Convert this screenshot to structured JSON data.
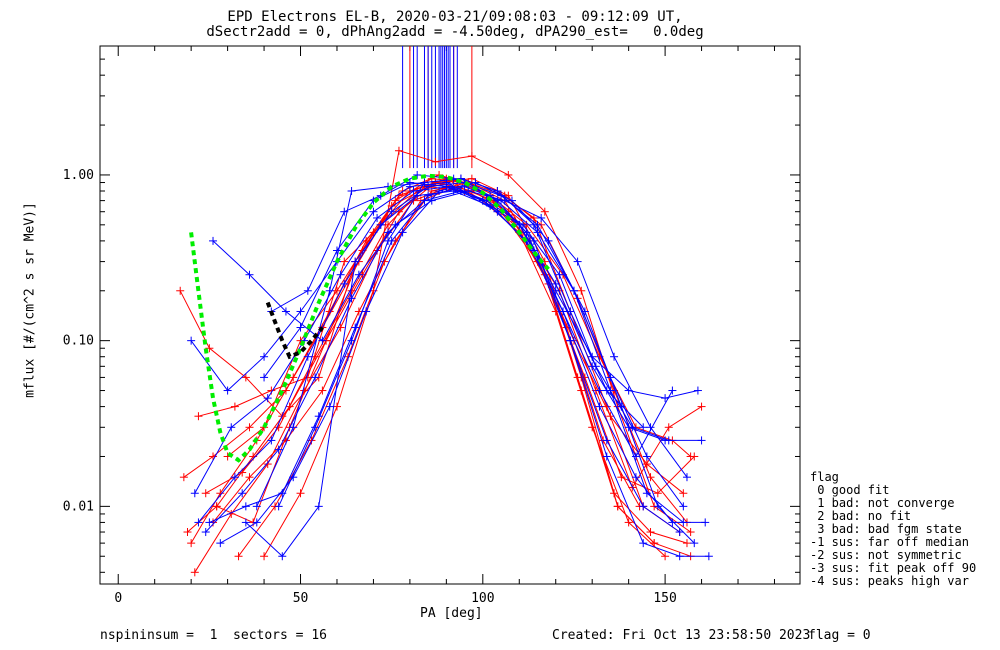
{
  "title_line1": "EPD Electrons EL-B, 2020-03-21/09:08:03 - 09:12:09 UT,",
  "title_line2": "dSectr2add = 0, dPhAng2add = -4.50deg, dPA290_est=   0.0deg",
  "footer": {
    "left": "nspininsum =  1  sectors = 16",
    "created": "Created: Fri Oct 13 23:58:50 2023",
    "flag": "flag = 0"
  },
  "legend": {
    "title": "flag",
    "items": [
      " 0 good fit",
      " 1 bad: not converge",
      " 2 bad: no fit",
      " 3 bad: bad fgm state",
      "-1 sus: far off median",
      "-2 sus: not symmetric",
      "-3 sus: fit peak off 90",
      "-4 sus: peaks high var"
    ]
  },
  "chart_data": {
    "type": "line",
    "xlabel": "PA [deg]",
    "ylabel": "mflux [#/(cm^2 s sr MeV)]",
    "xlim": [
      -5,
      187
    ],
    "ylim": [
      0.0034,
      6.0
    ],
    "yscale": "log",
    "x_ticks": [
      0,
      50,
      100,
      150
    ],
    "y_ticks": [
      0.01,
      0.1,
      1.0
    ],
    "y_tick_labels": [
      "0.01",
      "0.10",
      "1.00"
    ],
    "series": [
      {
        "color": "#ff0000",
        "x": [
          17,
          25,
          35,
          45,
          55,
          65,
          75,
          85,
          95,
          105,
          115,
          125,
          135,
          145,
          155
        ],
        "y": [
          0.2,
          0.09,
          0.06,
          0.035,
          0.06,
          0.3,
          0.65,
          0.85,
          0.8,
          0.6,
          0.3,
          0.1,
          0.035,
          0.018,
          0.012
        ]
      },
      {
        "color": "#ff0000",
        "x": [
          18,
          26,
          36,
          46,
          56,
          66,
          76,
          86,
          96,
          106,
          116,
          126,
          136,
          146,
          156
        ],
        "y": [
          0.015,
          0.02,
          0.03,
          0.05,
          0.12,
          0.3,
          0.7,
          0.95,
          0.9,
          0.7,
          0.3,
          0.06,
          0.012,
          0.007,
          0.006
        ]
      },
      {
        "color": "#ff0000",
        "x": [
          19,
          27,
          37,
          47,
          57,
          67,
          77,
          87,
          97,
          107,
          117,
          127,
          137,
          147,
          157
        ],
        "y": [
          0.007,
          0.01,
          0.02,
          0.04,
          0.1,
          0.35,
          0.75,
          0.9,
          0.8,
          0.6,
          0.25,
          0.05,
          0.01,
          0.006,
          0.005
        ]
      },
      {
        "color": "#ff0000",
        "x": [
          20,
          28,
          38,
          48,
          58,
          68,
          78,
          88,
          98,
          108,
          118,
          128,
          138,
          148,
          158
        ],
        "y": [
          0.006,
          0.012,
          0.025,
          0.06,
          0.15,
          0.4,
          0.8,
          1.0,
          0.85,
          0.55,
          0.22,
          0.06,
          0.015,
          0.012,
          0.02
        ]
      },
      {
        "color": "#ff0000",
        "x": [
          21,
          31,
          41,
          51,
          61,
          71,
          81,
          91,
          101,
          111,
          121,
          131,
          141,
          151,
          160
        ],
        "y": [
          0.004,
          0.009,
          0.018,
          0.05,
          0.12,
          0.35,
          0.7,
          0.85,
          0.7,
          0.45,
          0.2,
          0.05,
          0.013,
          0.03,
          0.04
        ]
      },
      {
        "color": "#ff0000",
        "x": [
          22,
          32,
          42,
          52,
          62,
          72,
          82,
          92,
          102,
          112,
          122,
          132,
          142,
          152,
          157
        ],
        "y": [
          0.035,
          0.04,
          0.05,
          0.06,
          0.3,
          0.5,
          0.8,
          0.92,
          0.75,
          0.5,
          0.25,
          0.08,
          0.03,
          0.025,
          0.02
        ]
      },
      {
        "color": "#ff0000",
        "x": [
          24,
          34,
          44,
          54,
          64,
          74,
          84,
          94,
          104,
          114,
          124,
          134,
          144,
          154
        ],
        "y": [
          0.012,
          0.016,
          0.03,
          0.08,
          0.2,
          0.5,
          0.85,
          0.95,
          0.8,
          0.55,
          0.15,
          0.04,
          0.01,
          0.007
        ]
      },
      {
        "color": "#ff0000",
        "x": [
          26,
          36,
          46,
          56,
          66,
          76,
          86,
          96,
          106,
          116,
          126,
          136,
          146,
          156
        ],
        "y": [
          0.008,
          0.015,
          0.025,
          0.05,
          0.15,
          0.4,
          0.8,
          0.9,
          0.75,
          0.5,
          0.18,
          0.05,
          0.015,
          0.008
        ]
      },
      {
        "color": "#ff0000",
        "x": [
          27,
          37,
          47,
          57,
          67,
          77,
          87,
          97,
          107,
          117,
          127,
          137,
          147
        ],
        "y": [
          0.01,
          0.008,
          0.03,
          0.1,
          0.25,
          0.6,
          0.9,
          0.95,
          0.75,
          0.3,
          0.06,
          0.01,
          0.006
        ]
      },
      {
        "color": "#ff0000",
        "x": [
          33,
          43,
          53,
          63,
          73,
          83,
          93,
          103,
          113,
          123,
          133,
          143
        ],
        "y": [
          0.005,
          0.01,
          0.025,
          0.08,
          0.3,
          0.7,
          0.85,
          0.7,
          0.4,
          0.12,
          0.025,
          0.01
        ]
      },
      {
        "color": "#ff0000",
        "x": [
          40,
          50,
          60,
          70,
          77,
          87,
          97,
          107,
          117,
          127,
          137,
          147,
          157
        ],
        "y": [
          0.005,
          0.012,
          0.04,
          0.2,
          1.4,
          1.2,
          1.3,
          1.0,
          0.6,
          0.2,
          0.04,
          0.01,
          0.007
        ]
      },
      {
        "color": "#ff0000",
        "x": [
          30,
          40,
          50,
          60,
          70,
          80,
          90,
          100,
          110,
          120,
          130,
          140,
          150
        ],
        "y": [
          0.02,
          0.03,
          0.1,
          0.2,
          0.45,
          0.8,
          0.95,
          0.7,
          0.45,
          0.15,
          0.03,
          0.008,
          0.005
        ]
      },
      {
        "color": "#0000ff",
        "x": [
          20,
          30,
          40,
          50,
          60,
          70,
          80,
          90,
          100,
          110,
          120,
          130,
          140,
          150,
          159
        ],
        "y": [
          0.1,
          0.05,
          0.08,
          0.15,
          0.3,
          0.6,
          0.85,
          0.9,
          0.7,
          0.5,
          0.2,
          0.08,
          0.05,
          0.045,
          0.05
        ]
      },
      {
        "color": "#0000ff",
        "x": [
          21,
          31,
          41,
          51,
          61,
          71,
          81,
          91,
          101,
          111,
          121,
          131,
          141,
          151,
          160
        ],
        "y": [
          0.012,
          0.03,
          0.045,
          0.1,
          0.25,
          0.55,
          0.8,
          0.85,
          0.7,
          0.5,
          0.25,
          0.07,
          0.03,
          0.025,
          0.025
        ]
      },
      {
        "color": "#0000ff",
        "x": [
          22,
          32,
          42,
          52,
          62,
          72,
          82,
          92,
          102,
          112,
          122,
          132,
          142,
          152,
          161
        ],
        "y": [
          0.008,
          0.015,
          0.025,
          0.08,
          0.22,
          0.5,
          0.75,
          0.8,
          0.65,
          0.4,
          0.15,
          0.04,
          0.015,
          0.008,
          0.008
        ]
      },
      {
        "color": "#0000ff",
        "x": [
          24,
          34,
          44,
          54,
          64,
          74,
          84,
          94,
          104,
          114,
          124,
          134,
          144,
          154,
          162
        ],
        "y": [
          0.007,
          0.012,
          0.022,
          0.06,
          0.18,
          0.45,
          0.7,
          0.8,
          0.6,
          0.35,
          0.1,
          0.02,
          0.006,
          0.005,
          0.005
        ]
      },
      {
        "color": "#0000ff",
        "x": [
          26,
          36,
          46,
          56,
          66,
          76,
          86,
          96,
          106,
          116,
          126,
          136,
          146,
          156
        ],
        "y": [
          0.4,
          0.25,
          0.15,
          0.1,
          0.25,
          0.5,
          0.7,
          0.8,
          0.7,
          0.55,
          0.3,
          0.08,
          0.03,
          0.015
        ]
      },
      {
        "color": "#0000ff",
        "x": [
          25,
          35,
          45,
          55,
          65,
          75,
          85,
          95,
          105,
          115,
          125,
          135,
          145,
          155
        ],
        "y": [
          0.008,
          0.01,
          0.012,
          0.035,
          0.12,
          0.4,
          0.75,
          0.85,
          0.7,
          0.45,
          0.2,
          0.05,
          0.012,
          0.008
        ]
      },
      {
        "color": "#0000ff",
        "x": [
          28,
          38,
          48,
          58,
          68,
          78,
          88,
          98,
          108,
          118,
          128,
          138,
          148,
          158
        ],
        "y": [
          0.006,
          0.008,
          0.015,
          0.04,
          0.15,
          0.45,
          0.8,
          0.9,
          0.7,
          0.4,
          0.15,
          0.04,
          0.01,
          0.006
        ]
      },
      {
        "color": "#0000ff",
        "x": [
          35,
          45,
          55,
          65,
          75,
          85,
          95,
          105,
          115,
          125,
          135,
          145,
          155
        ],
        "y": [
          0.008,
          0.005,
          0.01,
          0.3,
          0.6,
          0.85,
          0.9,
          0.75,
          0.5,
          0.2,
          0.06,
          0.02,
          0.01
        ]
      },
      {
        "color": "#0000ff",
        "x": [
          38,
          48,
          58,
          64,
          74,
          84,
          94,
          104,
          114,
          124,
          134,
          144
        ],
        "y": [
          0.01,
          0.03,
          0.2,
          0.8,
          0.85,
          0.9,
          0.95,
          0.8,
          0.5,
          0.15,
          0.05,
          0.03
        ]
      },
      {
        "color": "#0000ff",
        "x": [
          40,
          50,
          60,
          70,
          80,
          90,
          100,
          110,
          120,
          130,
          140,
          150
        ],
        "y": [
          0.06,
          0.12,
          0.35,
          0.7,
          0.9,
          0.85,
          0.7,
          0.5,
          0.22,
          0.07,
          0.03,
          0.025
        ]
      },
      {
        "color": "#0000ff",
        "x": [
          44,
          54,
          64,
          74,
          84,
          94,
          104,
          114,
          124,
          134,
          144,
          154
        ],
        "y": [
          0.01,
          0.03,
          0.1,
          0.4,
          0.9,
          0.95,
          0.7,
          0.4,
          0.1,
          0.025,
          0.01,
          0.007
        ]
      },
      {
        "color": "#0000ff",
        "x": [
          42,
          52,
          62,
          72,
          82,
          92,
          102,
          112,
          122,
          132,
          142,
          152
        ],
        "y": [
          0.15,
          0.2,
          0.6,
          0.75,
          1.0,
          0.95,
          0.75,
          0.45,
          0.15,
          0.05,
          0.02,
          0.05
        ]
      },
      {
        "color": "#00ee00",
        "dashed": true,
        "x": [
          20,
          22,
          24,
          26,
          28,
          30,
          33,
          36,
          40,
          45,
          50,
          55,
          60,
          65,
          70,
          75,
          80,
          85,
          90,
          95,
          100,
          105,
          110,
          115,
          118
        ],
        "y": [
          0.45,
          0.2,
          0.09,
          0.045,
          0.028,
          0.021,
          0.019,
          0.022,
          0.03,
          0.05,
          0.09,
          0.17,
          0.3,
          0.48,
          0.68,
          0.85,
          0.95,
          0.99,
          0.97,
          0.9,
          0.78,
          0.62,
          0.45,
          0.32,
          0.27
        ]
      },
      {
        "color": "#000000",
        "dashed": true,
        "x": [
          41,
          43,
          45,
          47,
          50,
          53,
          56
        ],
        "y": [
          0.17,
          0.13,
          0.1,
          0.08,
          0.085,
          0.1,
          0.12
        ]
      }
    ],
    "vertical_lines": {
      "red": [
        80,
        85,
        92,
        97
      ],
      "blue": [
        78,
        81,
        82,
        84,
        85,
        86,
        87,
        88,
        88.5,
        89,
        89.5,
        90,
        90.5,
        91,
        92,
        93
      ],
      "top_y": 6.0,
      "bottom_y": 1.1
    }
  }
}
